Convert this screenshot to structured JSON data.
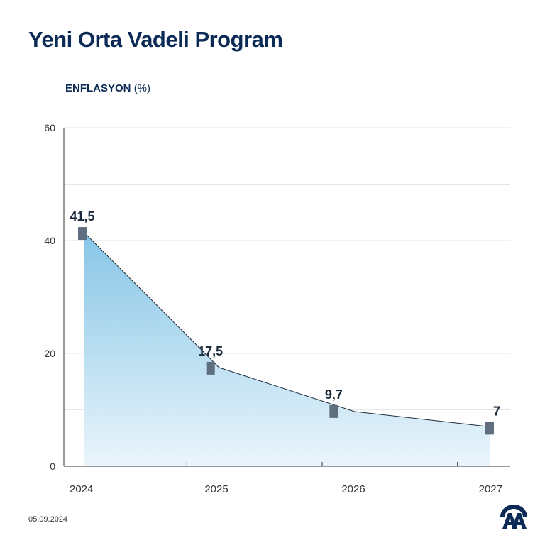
{
  "title": "Yeni Orta Vadeli Program",
  "subtitle": {
    "main": "ENFLASYON",
    "unit": "(%)"
  },
  "date": "05.09.2024",
  "colors": {
    "title": "#0b2a55",
    "marker": "#5e6e7e",
    "fill_top": "#86c5e6",
    "fill_bottom": "#eaf5fb"
  },
  "chart_data": {
    "type": "area",
    "title": "ENFLASYON (%)",
    "xlabel": "",
    "ylabel": "",
    "categories": [
      "2024",
      "2025",
      "2026",
      "2027"
    ],
    "values": [
      41.5,
      17.5,
      9.7,
      7
    ],
    "data_labels": [
      "41,5",
      "17,5",
      "9,7",
      "7"
    ],
    "ylim": [
      0,
      60
    ],
    "yticks": [
      0,
      20,
      40,
      60
    ],
    "grid": true,
    "legend": "none"
  }
}
